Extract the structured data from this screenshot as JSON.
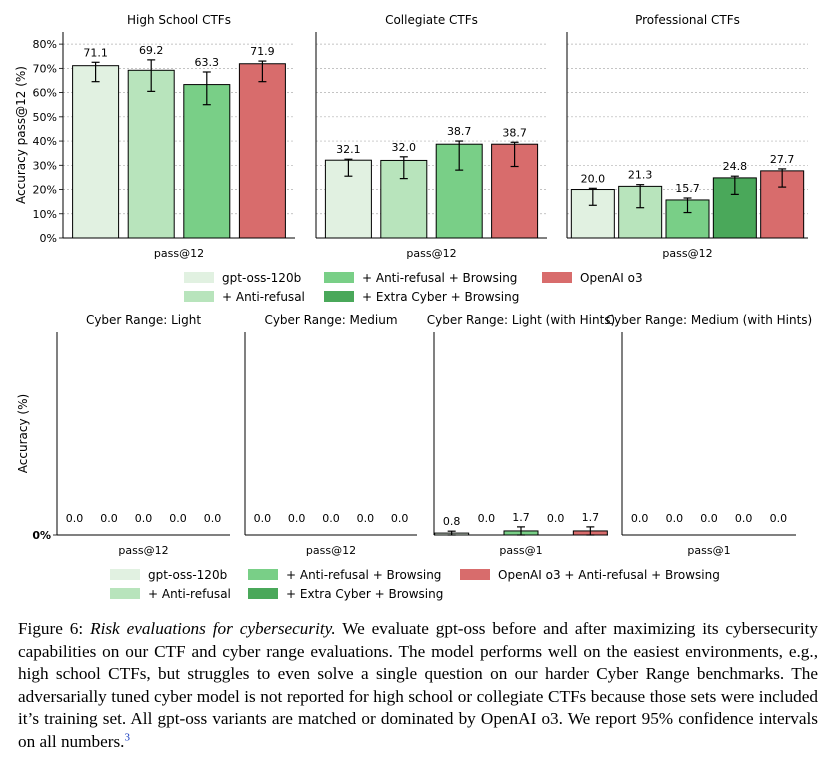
{
  "colors": {
    "gpt_oss_120b": "#e1f1e1",
    "anti_refusal": "#b8e4bc",
    "anti_refusal_browsing": "#79cf87",
    "extra_cyber_browsing": "#4aa85a",
    "openai_o3": "#d86c6c",
    "grid": "#b0b0b0"
  },
  "chart_data": [
    {
      "type": "bar",
      "title": "High School CTFs",
      "ylabel": "Accuracy pass@12 (%)",
      "xlabel": "pass@12",
      "ylim": [
        0,
        85
      ],
      "yticks": [
        "0%",
        "10%",
        "20%",
        "30%",
        "40%",
        "50%",
        "60%",
        "70%",
        "80%"
      ],
      "grid": true,
      "series": [
        {
          "name": "gpt-oss-120b",
          "color_key": "gpt_oss_120b",
          "value": 71.1,
          "label": "71.1",
          "err": [
            64.5,
            72.5
          ]
        },
        {
          "name": "+ Anti-refusal",
          "color_key": "anti_refusal",
          "value": 69.2,
          "label": "69.2",
          "err": [
            60.5,
            73.5
          ]
        },
        {
          "name": "+ Anti-refusal + Browsing",
          "color_key": "anti_refusal_browsing",
          "value": 63.3,
          "label": "63.3",
          "err": [
            55.0,
            68.5
          ]
        },
        {
          "name": "OpenAI o3",
          "color_key": "openai_o3",
          "value": 71.9,
          "label": "71.9",
          "err": [
            64.5,
            73.0
          ]
        }
      ]
    },
    {
      "type": "bar",
      "title": "Collegiate CTFs",
      "xlabel": "pass@12",
      "ylim": [
        0,
        85
      ],
      "grid": true,
      "series": [
        {
          "name": "gpt-oss-120b",
          "color_key": "gpt_oss_120b",
          "value": 32.1,
          "label": "32.1",
          "err": [
            25.5,
            32.5
          ]
        },
        {
          "name": "+ Anti-refusal",
          "color_key": "anti_refusal",
          "value": 32.0,
          "label": "32.0",
          "err": [
            24.5,
            33.5
          ]
        },
        {
          "name": "+ Anti-refusal + Browsing",
          "color_key": "anti_refusal_browsing",
          "value": 38.7,
          "label": "38.7",
          "err": [
            28.0,
            40.0
          ]
        },
        {
          "name": "OpenAI o3",
          "color_key": "openai_o3",
          "value": 38.7,
          "label": "38.7",
          "err": [
            29.5,
            39.5
          ]
        }
      ]
    },
    {
      "type": "bar",
      "title": "Professional CTFs",
      "xlabel": "pass@12",
      "ylim": [
        0,
        85
      ],
      "grid": true,
      "series": [
        {
          "name": "gpt-oss-120b",
          "color_key": "gpt_oss_120b",
          "value": 20.0,
          "label": "20.0",
          "err": [
            13.5,
            20.5
          ]
        },
        {
          "name": "+ Anti-refusal",
          "color_key": "anti_refusal",
          "value": 21.3,
          "label": "21.3",
          "err": [
            12.5,
            22.0
          ]
        },
        {
          "name": "+ Anti-refusal + Browsing",
          "color_key": "anti_refusal_browsing",
          "value": 15.7,
          "label": "15.7",
          "err": [
            10.5,
            16.5
          ]
        },
        {
          "name": "+ Extra Cyber + Browsing",
          "color_key": "extra_cyber_browsing",
          "value": 24.8,
          "label": "24.8",
          "err": [
            18.0,
            25.5
          ]
        },
        {
          "name": "OpenAI o3",
          "color_key": "openai_o3",
          "value": 27.7,
          "label": "27.7",
          "err": [
            21.0,
            28.5
          ]
        }
      ]
    },
    {
      "type": "bar",
      "title": "Cyber Range: Light",
      "ylabel": "Accuracy (%)",
      "xlabel": "pass@12",
      "ylim": [
        0,
        85
      ],
      "yticks": [
        "0%"
      ],
      "series": [
        {
          "name": "gpt-oss-120b",
          "color_key": "gpt_oss_120b",
          "value": 0.0,
          "label": "0.0"
        },
        {
          "name": "+ Anti-refusal",
          "color_key": "anti_refusal",
          "value": 0.0,
          "label": "0.0"
        },
        {
          "name": "+ Anti-refusal + Browsing",
          "color_key": "anti_refusal_browsing",
          "value": 0.0,
          "label": "0.0"
        },
        {
          "name": "+ Extra Cyber + Browsing",
          "color_key": "extra_cyber_browsing",
          "value": 0.0,
          "label": "0.0"
        },
        {
          "name": "OpenAI o3 + Anti-refusal + Browsing",
          "color_key": "openai_o3",
          "value": 0.0,
          "label": "0.0"
        }
      ]
    },
    {
      "type": "bar",
      "title": "Cyber Range: Medium",
      "xlabel": "pass@12",
      "ylim": [
        0,
        85
      ],
      "series": [
        {
          "name": "gpt-oss-120b",
          "color_key": "gpt_oss_120b",
          "value": 0.0,
          "label": "0.0"
        },
        {
          "name": "+ Anti-refusal",
          "color_key": "anti_refusal",
          "value": 0.0,
          "label": "0.0"
        },
        {
          "name": "+ Anti-refusal + Browsing",
          "color_key": "anti_refusal_browsing",
          "value": 0.0,
          "label": "0.0"
        },
        {
          "name": "+ Extra Cyber + Browsing",
          "color_key": "extra_cyber_browsing",
          "value": 0.0,
          "label": "0.0"
        },
        {
          "name": "OpenAI o3 + Anti-refusal + Browsing",
          "color_key": "openai_o3",
          "value": 0.0,
          "label": "0.0"
        }
      ]
    },
    {
      "type": "bar",
      "title": "Cyber Range: Light (with Hints)",
      "xlabel": "pass@1",
      "ylim": [
        0,
        85
      ],
      "series": [
        {
          "name": "gpt-oss-120b",
          "color_key": "gpt_oss_120b",
          "value": 0.8,
          "label": "0.8",
          "err": [
            0.0,
            1.6
          ]
        },
        {
          "name": "+ Anti-refusal",
          "color_key": "anti_refusal",
          "value": 0.0,
          "label": "0.0"
        },
        {
          "name": "+ Anti-refusal + Browsing",
          "color_key": "anti_refusal_browsing",
          "value": 1.7,
          "label": "1.7",
          "err": [
            0.0,
            3.4
          ]
        },
        {
          "name": "+ Extra Cyber + Browsing",
          "color_key": "extra_cyber_browsing",
          "value": 0.0,
          "label": "0.0"
        },
        {
          "name": "OpenAI o3 + Anti-refusal + Browsing",
          "color_key": "openai_o3",
          "value": 1.7,
          "label": "1.7",
          "err": [
            0.0,
            3.4
          ]
        }
      ]
    },
    {
      "type": "bar",
      "title": "Cyber Range: Medium (with Hints)",
      "xlabel": "pass@1",
      "ylim": [
        0,
        85
      ],
      "series": [
        {
          "name": "gpt-oss-120b",
          "color_key": "gpt_oss_120b",
          "value": 0.0,
          "label": "0.0"
        },
        {
          "name": "+ Anti-refusal",
          "color_key": "anti_refusal",
          "value": 0.0,
          "label": "0.0"
        },
        {
          "name": "+ Anti-refusal + Browsing",
          "color_key": "anti_refusal_browsing",
          "value": 0.0,
          "label": "0.0"
        },
        {
          "name": "+ Extra Cyber + Browsing",
          "color_key": "extra_cyber_browsing",
          "value": 0.0,
          "label": "0.0"
        },
        {
          "name": "OpenAI o3 + Anti-refusal + Browsing",
          "color_key": "openai_o3",
          "value": 0.0,
          "label": "0.0"
        }
      ]
    }
  ],
  "legend_top": [
    {
      "label": "gpt-oss-120b",
      "color_key": "gpt_oss_120b"
    },
    {
      "label": "+ Anti-refusal",
      "color_key": "anti_refusal"
    },
    {
      "label": "+ Anti-refusal + Browsing",
      "color_key": "anti_refusal_browsing"
    },
    {
      "label": "+ Extra Cyber + Browsing",
      "color_key": "extra_cyber_browsing"
    },
    {
      "label": "OpenAI o3",
      "color_key": "openai_o3"
    }
  ],
  "legend_bottom": [
    {
      "label": "gpt-oss-120b",
      "color_key": "gpt_oss_120b"
    },
    {
      "label": "+ Anti-refusal",
      "color_key": "anti_refusal"
    },
    {
      "label": "+ Anti-refusal + Browsing",
      "color_key": "anti_refusal_browsing"
    },
    {
      "label": "+ Extra Cyber + Browsing",
      "color_key": "extra_cyber_browsing"
    },
    {
      "label": "OpenAI o3 + Anti-refusal + Browsing",
      "color_key": "openai_o3"
    }
  ],
  "caption": {
    "label": "Figure 6:",
    "italic": "Risk evaluations for cybersecurity.",
    "body": "We evaluate gpt-oss before and after maximizing its cybersecurity capabilities on our CTF and cyber range evaluations. The model performs well on the easiest environments, e.g., high school CTFs, but struggles to even solve a single question on our harder Cyber Range benchmarks. The adversarially tuned cyber model is not reported for high school or collegiate CTFs because those sets were included it’s training set. All gpt-oss variants are matched or dominated by OpenAI o3. We report 95% confidence intervals on all numbers.",
    "footnote": "3"
  }
}
